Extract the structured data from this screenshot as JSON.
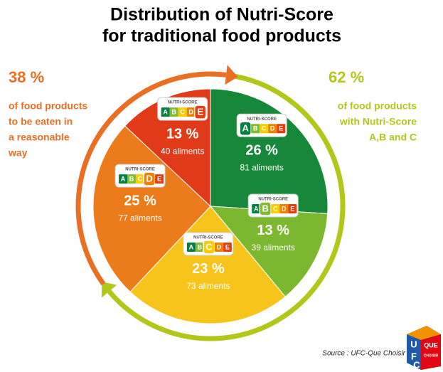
{
  "chart_data": {
    "type": "pie",
    "title": [
      "Distribution of Nutri-Score",
      "for traditional food products"
    ],
    "categories": [
      "A",
      "B",
      "C",
      "D",
      "E"
    ],
    "values": [
      26,
      13,
      23,
      25,
      13
    ],
    "value_labels": [
      "26 %",
      "13 %",
      "23 %",
      "25 %",
      "13 %"
    ],
    "counts": [
      81,
      39,
      73,
      77,
      40
    ],
    "count_labels": [
      "81 aliments",
      "39 aliments",
      "73 aliments",
      "77 aliments",
      "40 aliments"
    ],
    "colors": [
      "#17873a",
      "#7cb82f",
      "#f6c41a",
      "#ec7b1c",
      "#e03a18"
    ],
    "badge_title": "NUTRI-SCORE",
    "grade_colors": [
      "#038141",
      "#85bb2f",
      "#fecb02",
      "#ee8100",
      "#e63e11"
    ],
    "groups": [
      {
        "value": 38,
        "label": "38 %",
        "color": "#ea6f24",
        "text": [
          "of food products",
          "to be eaten in",
          "a reasonable",
          "way"
        ]
      },
      {
        "value": 62,
        "label": "62 %",
        "color": "#b3c71b",
        "text": [
          "of food products",
          "with Nutri-Score",
          "A,B and C"
        ]
      }
    ],
    "source": "Source : UFC-Que Choisir",
    "logo": {
      "letters": [
        "U",
        "F",
        "C"
      ],
      "que": "QUE",
      "choisir": "CHOISIR"
    }
  }
}
